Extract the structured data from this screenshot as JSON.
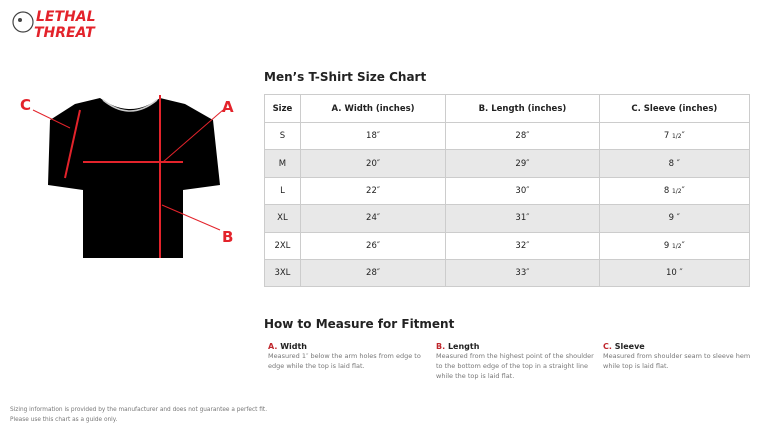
{
  "brand": {
    "name": "Lethal Threat",
    "color": "#e3232b"
  },
  "chart_title": "Men’s T-Shirt Size Chart",
  "diagram": {
    "labels": [
      "A",
      "B",
      "C"
    ]
  },
  "table": {
    "headers": [
      "Size",
      "A. Width (inches)",
      "B. Length (inches)",
      "C. Sleeve (inches)"
    ],
    "rows": [
      [
        "S",
        "18″",
        "28″",
        "7",
        "1/2",
        "″"
      ],
      [
        "M",
        "20″",
        "29″",
        "8",
        "",
        "″"
      ],
      [
        "L",
        "22″",
        "30″",
        "8",
        "1/2",
        "″"
      ],
      [
        "XL",
        "24″",
        "31″",
        "9",
        "",
        "″"
      ],
      [
        "2XL",
        "26″",
        "32″",
        "9",
        "1/2",
        "″"
      ],
      [
        "3XL",
        "28″",
        "33″",
        "10",
        "",
        "″"
      ]
    ]
  },
  "howto": {
    "title": "How to Measure for Fitment",
    "items": [
      {
        "letter": "A.",
        "name": "Width",
        "text": "Measured 1″ below the arm holes from edge to edge while the top is laid flat."
      },
      {
        "letter": "B.",
        "name": "Length",
        "text": "Measured from the highest point of the shoulder to the bottom edge of the top in a straight line while the top is laid flat."
      },
      {
        "letter": "C.",
        "name": "Sleeve",
        "text": "Measured from shoulder seam to sleeve hem while top is laid flat."
      }
    ]
  },
  "footer": [
    "Sizing information is provided by the manufacturer and does not guarantee a perfect fit.",
    "Please use this chart as a guide only."
  ]
}
